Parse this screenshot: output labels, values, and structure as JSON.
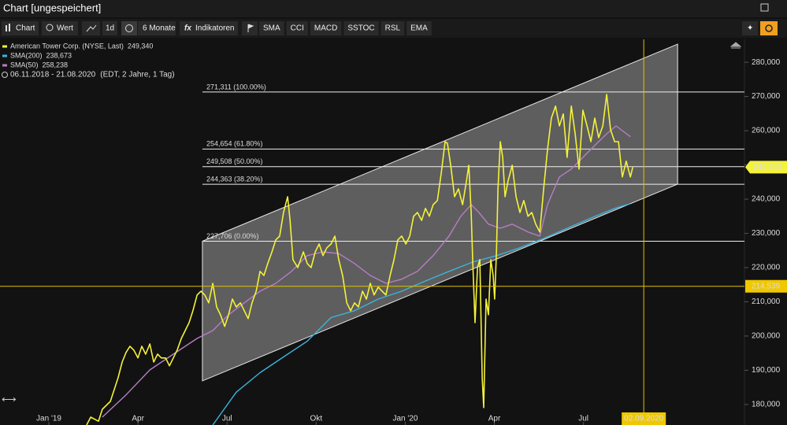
{
  "window_title": "Chart [ungespeichert]",
  "toolbar": {
    "chart": "Chart",
    "value": "Wert",
    "interval": "1d",
    "period": "6 Monate",
    "indicators": "Indikatoren",
    "quick": [
      "SMA",
      "CCI",
      "MACD",
      "SSTOC",
      "RSL",
      "EMA"
    ]
  },
  "chart_data": {
    "type": "line",
    "range": "06.11.2018 - 21.08.2020",
    "range_note": "(EDT, 2 Jahre, 1 Tag)",
    "xlim": [
      -1.645,
      23.42
    ],
    "xticks": [
      {
        "value": 0,
        "label": "Jan '19"
      },
      {
        "value": 3,
        "label": "Apr"
      },
      {
        "value": 6,
        "label": "Jul"
      },
      {
        "value": 9,
        "label": "Okt"
      },
      {
        "value": 12,
        "label": "Jan '20"
      },
      {
        "value": 15,
        "label": "Apr"
      },
      {
        "value": 18,
        "label": "Jul"
      }
    ],
    "ylim": [
      174000,
      286700
    ],
    "yticks": [
      {
        "value": 180000,
        "label": "180,000"
      },
      {
        "value": 190000,
        "label": "190,000"
      },
      {
        "value": 200000,
        "label": "200,000"
      },
      {
        "value": 210000,
        "label": "210,000"
      },
      {
        "value": 220000,
        "label": "220,000"
      },
      {
        "value": 230000,
        "label": "230,000"
      },
      {
        "value": 240000,
        "label": "240,000"
      },
      {
        "value": 250000,
        "label": "250,000"
      },
      {
        "value": 260000,
        "label": "260,000"
      },
      {
        "value": 270000,
        "label": "270,000"
      },
      {
        "value": 280000,
        "label": "280,000"
      }
    ],
    "grid": false,
    "series": [
      {
        "name": "American Tower Corp. (NYSE, Last)",
        "color": "#f4f23a",
        "last_label": "249,340",
        "x": [
          1.27,
          1.41,
          1.67,
          1.8,
          2.07,
          2.33,
          2.47,
          2.6,
          2.73,
          2.86,
          3.0,
          3.13,
          3.26,
          3.4,
          3.53,
          3.66,
          3.79,
          3.93,
          4.06,
          4.19,
          4.32,
          4.46,
          4.59,
          4.72,
          4.85,
          4.99,
          5.12,
          5.25,
          5.38,
          5.52,
          5.65,
          5.78,
          5.92,
          6.05,
          6.18,
          6.31,
          6.45,
          6.58,
          6.71,
          6.84,
          6.98,
          7.11,
          7.24,
          7.37,
          7.51,
          7.64,
          7.77,
          7.9,
          8.04,
          8.12,
          8.22,
          8.38,
          8.57,
          8.7,
          8.83,
          8.97,
          9.1,
          9.23,
          9.36,
          9.5,
          9.63,
          9.76,
          9.89,
          10.03,
          10.16,
          10.29,
          10.42,
          10.56,
          10.69,
          10.82,
          10.95,
          11.09,
          11.22,
          11.35,
          11.49,
          11.62,
          11.75,
          11.88,
          12.02,
          12.15,
          12.28,
          12.41,
          12.55,
          12.68,
          12.81,
          12.94,
          13.08,
          13.21,
          13.34,
          13.42,
          13.53,
          13.66,
          13.79,
          13.93,
          14.06,
          14.14,
          14.22,
          14.27,
          14.35,
          14.43,
          14.51,
          14.59,
          14.64,
          14.72,
          14.8,
          14.88,
          14.96,
          15.01,
          15.07,
          15.12,
          15.2,
          15.28,
          15.36,
          15.46,
          15.6,
          15.73,
          15.86,
          15.99,
          16.13,
          16.26,
          16.39,
          16.53,
          16.66,
          16.79,
          16.92,
          17.06,
          17.19,
          17.32,
          17.45,
          17.59,
          17.72,
          17.85,
          17.98,
          18.12,
          18.25,
          18.38,
          18.51,
          18.65,
          18.78,
          18.91,
          19.05,
          19.18,
          19.31,
          19.44,
          19.58,
          19.66
        ],
        "values": [
          174000,
          176300,
          175100,
          178600,
          180900,
          187800,
          192400,
          195200,
          197000,
          195900,
          193600,
          197000,
          194700,
          197700,
          192400,
          194700,
          193600,
          193600,
          191300,
          193600,
          195900,
          199300,
          201600,
          203900,
          207400,
          212000,
          213100,
          212000,
          209700,
          215400,
          208500,
          206200,
          202800,
          206200,
          210800,
          208500,
          209700,
          207400,
          205100,
          209700,
          213100,
          218900,
          217700,
          221200,
          224600,
          228100,
          229200,
          236100,
          240700,
          233800,
          222300,
          220000,
          224600,
          221200,
          220000,
          224600,
          226900,
          223500,
          225800,
          226900,
          229200,
          222300,
          217700,
          209700,
          207400,
          209700,
          208500,
          213100,
          210800,
          215400,
          212000,
          214300,
          213100,
          212000,
          217700,
          222300,
          228100,
          229200,
          226900,
          229200,
          235000,
          236100,
          233800,
          237300,
          235000,
          238400,
          239600,
          247600,
          256800,
          256300,
          249900,
          240700,
          243000,
          238400,
          245300,
          249900,
          236100,
          222300,
          203900,
          220000,
          222300,
          187800,
          179100,
          210800,
          206200,
          222300,
          217700,
          210800,
          224600,
          243000,
          256800,
          252200,
          240700,
          245300,
          249900,
          240700,
          236100,
          239600,
          235000,
          236100,
          232700,
          230400,
          243000,
          254500,
          263700,
          267200,
          261400,
          264900,
          252200,
          267200,
          259100,
          248800,
          266000,
          261400,
          256800,
          263700,
          258000,
          261400,
          270600,
          260300,
          256800,
          256800,
          246500,
          251100,
          246500,
          249340
        ]
      },
      {
        "name": "SMA(200)",
        "color": "#3ab4dc",
        "last_label": "238,673",
        "x": [
          5.52,
          6.31,
          7.11,
          7.9,
          8.7,
          9.5,
          10.29,
          11.09,
          11.88,
          12.68,
          13.47,
          14.27,
          15.07,
          15.86,
          16.66,
          17.45,
          18.25,
          19.05,
          19.58
        ],
        "values": [
          174000,
          183600,
          189300,
          193900,
          198500,
          205400,
          207400,
          210800,
          213100,
          216100,
          218900,
          221600,
          223500,
          225800,
          228500,
          231500,
          234500,
          237300,
          238673
        ]
      },
      {
        "name": "SMA(50)",
        "color": "#b67ec4",
        "last_label": "258,238",
        "x": [
          1.8,
          2.6,
          3.4,
          4.19,
          4.99,
          5.52,
          6.05,
          6.58,
          7.11,
          7.64,
          8.17,
          8.7,
          9.23,
          9.76,
          10.29,
          10.82,
          11.35,
          11.88,
          12.41,
          12.94,
          13.47,
          13.87,
          14.22,
          14.48,
          14.8,
          15.2,
          15.6,
          16.13,
          16.53,
          16.79,
          17.19,
          17.59,
          17.98,
          18.38,
          18.78,
          19.1,
          19.58
        ],
        "values": [
          176300,
          182800,
          190100,
          194700,
          199300,
          201600,
          206200,
          209700,
          213100,
          215400,
          218900,
          223500,
          224600,
          224100,
          221200,
          217700,
          215400,
          216600,
          218900,
          223500,
          229200,
          235000,
          238400,
          236100,
          232700,
          231500,
          232700,
          230400,
          229200,
          238400,
          246500,
          248800,
          252200,
          255700,
          259100,
          261400,
          258238
        ]
      }
    ],
    "channel": {
      "x": [
        5.17,
        21.17
      ],
      "upper": [
        227706,
        285300
      ],
      "lower": [
        186900,
        244400
      ]
    },
    "fib_levels": [
      {
        "value": 271311,
        "label": "271,311 (100.00%)"
      },
      {
        "value": 254654,
        "label": "254,654 (61.80%)"
      },
      {
        "value": 249508,
        "label": "249,508 (50.00%)"
      },
      {
        "value": 244363,
        "label": "244,363 (38.20%)"
      },
      {
        "value": 227706,
        "label": "227,706 (0.00%)"
      }
    ],
    "crosshair": {
      "x": 20.03,
      "x_label": "02.09.2020",
      "y": 214539,
      "y_label": "214,539"
    }
  }
}
